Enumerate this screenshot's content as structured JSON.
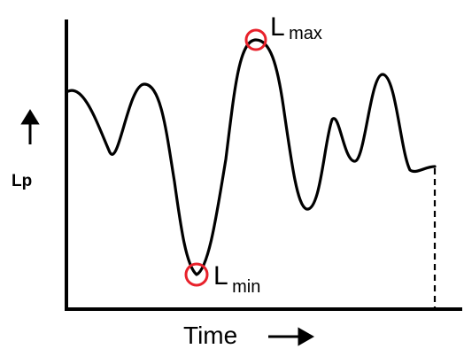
{
  "diagram": {
    "ylabel": "Lp",
    "xlabel": "Time",
    "annotations": {
      "max": {
        "main": "L",
        "sub": "max"
      },
      "min": {
        "main": "L",
        "sub": "min"
      }
    },
    "y_direction_icon": "up-arrow-icon",
    "x_direction_icon": "right-arrow-icon",
    "colors": {
      "curve": "#000000",
      "axes": "#000000",
      "marker": "#e8212b"
    }
  }
}
